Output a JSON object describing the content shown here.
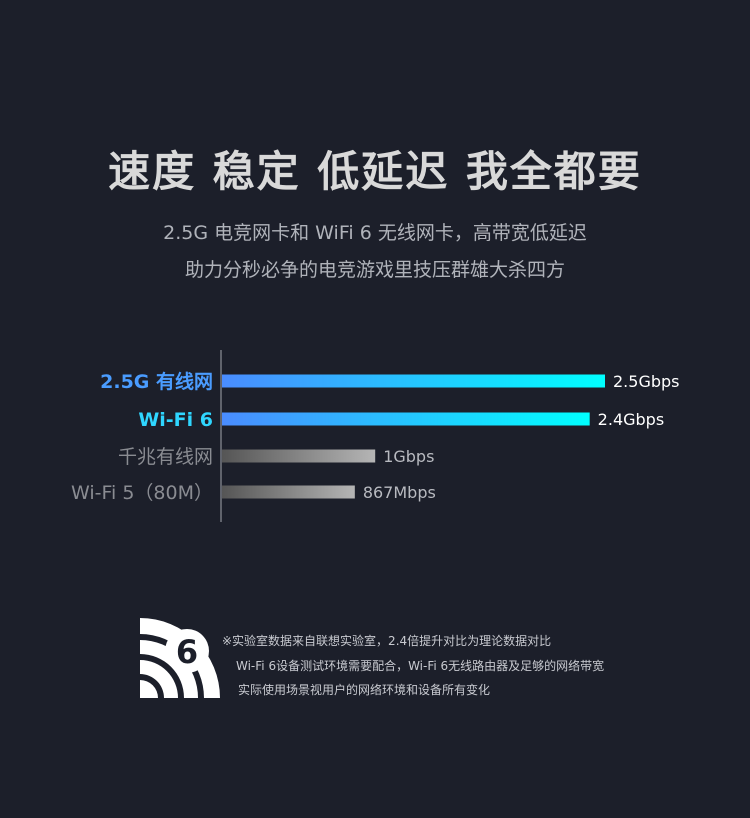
{
  "header": {
    "title": "速度 稳定 低延迟 我全都要",
    "subtitle_line1": "2.5G 电竞网卡和 WiFi 6 无线网卡，高带宽低延迟",
    "subtitle_line2": "助力分秒必争的电竞游戏里技压群雄大杀四方"
  },
  "chart_data": {
    "type": "bar",
    "orientation": "horizontal",
    "unit": "Gbps",
    "categories": [
      "2.5G 有线网",
      "Wi-Fi 6",
      "千兆有线网",
      "Wi-Fi 5（80M）"
    ],
    "values": [
      2.5,
      2.4,
      1,
      0.867
    ],
    "data_labels": [
      "2.5Gbps",
      "2.4Gbps",
      "1Gbps",
      "867Mbps"
    ],
    "category_colors": [
      "#4a9cff",
      "#2fd6ff",
      "#8a8c92",
      "#8a8c92"
    ],
    "bar_styles": [
      "highlight",
      "highlight",
      "muted",
      "muted"
    ],
    "colors": {
      "highlight_start": "#4a8cff",
      "highlight_end": "#00ffff",
      "muted_start": "#555555",
      "muted_end": "#b5b5b5"
    },
    "grid": false
  },
  "footer": {
    "logo_text": "6",
    "notes": [
      "※实验室数据来自联想实验室，2.4倍提升对比为理论数据对比",
      "Wi-Fi 6设备测试环境需要配合，Wi-Fi 6无线路由器及足够的网络带宽",
      "实际使用场景视用户的网络环境和设备所有变化"
    ]
  }
}
